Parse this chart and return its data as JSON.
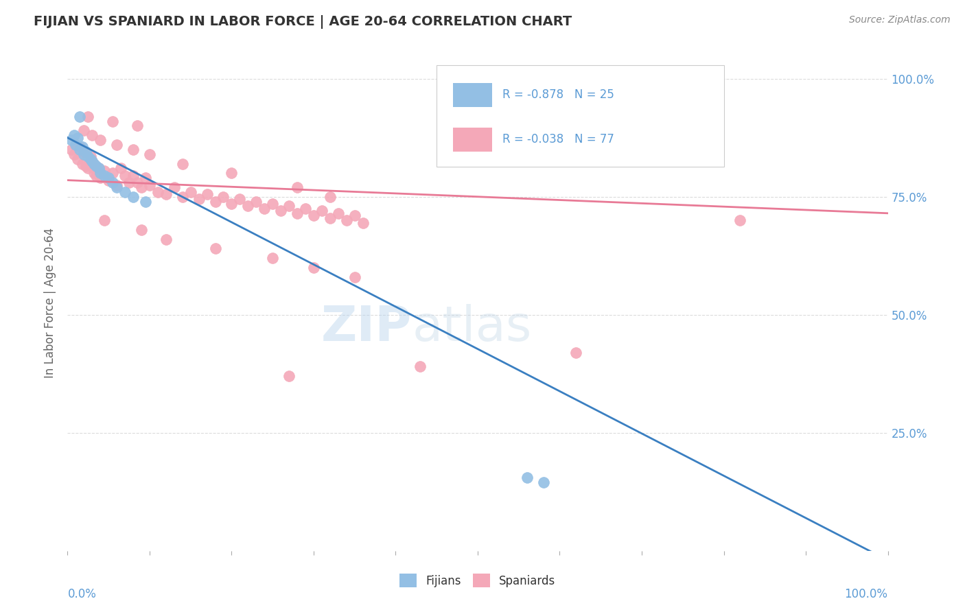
{
  "title": "FIJIAN VS SPANIARD IN LABOR FORCE | AGE 20-64 CORRELATION CHART",
  "source": "Source: ZipAtlas.com",
  "ylabel": "In Labor Force | Age 20-64",
  "fijian_color": "#93bfe4",
  "spaniard_color": "#f4a8b8",
  "fijian_line_color": "#3a7fc1",
  "spaniard_line_color": "#e87a96",
  "fijian_R": -0.878,
  "fijian_N": 25,
  "spaniard_R": -0.038,
  "spaniard_N": 77,
  "ytick_labels": [
    "100.0%",
    "75.0%",
    "50.0%",
    "25.0%"
  ],
  "ytick_values": [
    1.0,
    0.75,
    0.5,
    0.25
  ],
  "watermark": "ZIPatlas",
  "fijian_scatter_x": [
    0.005,
    0.008,
    0.01,
    0.012,
    0.015,
    0.018,
    0.02,
    0.022,
    0.025,
    0.028,
    0.03,
    0.032,
    0.035,
    0.038,
    0.04,
    0.045,
    0.05,
    0.055,
    0.06,
    0.07,
    0.08,
    0.095,
    0.015,
    0.56,
    0.58
  ],
  "fijian_scatter_y": [
    0.87,
    0.88,
    0.86,
    0.875,
    0.85,
    0.855,
    0.84,
    0.845,
    0.835,
    0.83,
    0.825,
    0.82,
    0.815,
    0.81,
    0.8,
    0.795,
    0.79,
    0.78,
    0.77,
    0.76,
    0.75,
    0.74,
    0.92,
    0.155,
    0.145
  ],
  "spaniard_scatter_x": [
    0.005,
    0.008,
    0.01,
    0.012,
    0.015,
    0.018,
    0.02,
    0.022,
    0.025,
    0.028,
    0.03,
    0.032,
    0.035,
    0.038,
    0.04,
    0.045,
    0.05,
    0.055,
    0.06,
    0.065,
    0.07,
    0.075,
    0.08,
    0.085,
    0.09,
    0.095,
    0.1,
    0.11,
    0.12,
    0.13,
    0.14,
    0.15,
    0.16,
    0.17,
    0.18,
    0.19,
    0.2,
    0.21,
    0.22,
    0.23,
    0.24,
    0.25,
    0.26,
    0.27,
    0.28,
    0.29,
    0.3,
    0.31,
    0.32,
    0.33,
    0.34,
    0.35,
    0.36,
    0.045,
    0.09,
    0.12,
    0.18,
    0.25,
    0.3,
    0.35,
    0.02,
    0.03,
    0.04,
    0.06,
    0.08,
    0.1,
    0.14,
    0.2,
    0.28,
    0.32,
    0.025,
    0.055,
    0.085,
    0.82,
    0.62,
    0.43,
    0.27
  ],
  "spaniard_scatter_y": [
    0.85,
    0.84,
    0.86,
    0.83,
    0.855,
    0.82,
    0.845,
    0.815,
    0.81,
    0.835,
    0.825,
    0.8,
    0.795,
    0.81,
    0.79,
    0.805,
    0.785,
    0.8,
    0.775,
    0.81,
    0.795,
    0.78,
    0.795,
    0.78,
    0.77,
    0.79,
    0.775,
    0.76,
    0.755,
    0.77,
    0.75,
    0.76,
    0.745,
    0.755,
    0.74,
    0.75,
    0.735,
    0.745,
    0.73,
    0.74,
    0.725,
    0.735,
    0.72,
    0.73,
    0.715,
    0.725,
    0.71,
    0.72,
    0.705,
    0.715,
    0.7,
    0.71,
    0.695,
    0.7,
    0.68,
    0.66,
    0.64,
    0.62,
    0.6,
    0.58,
    0.89,
    0.88,
    0.87,
    0.86,
    0.85,
    0.84,
    0.82,
    0.8,
    0.77,
    0.75,
    0.92,
    0.91,
    0.9,
    0.7,
    0.42,
    0.39,
    0.37
  ],
  "background_color": "#ffffff",
  "grid_color": "#cccccc",
  "title_color": "#333333",
  "axis_label_color": "#5b9bd5",
  "source_color": "#888888",
  "ylabel_color": "#666666"
}
